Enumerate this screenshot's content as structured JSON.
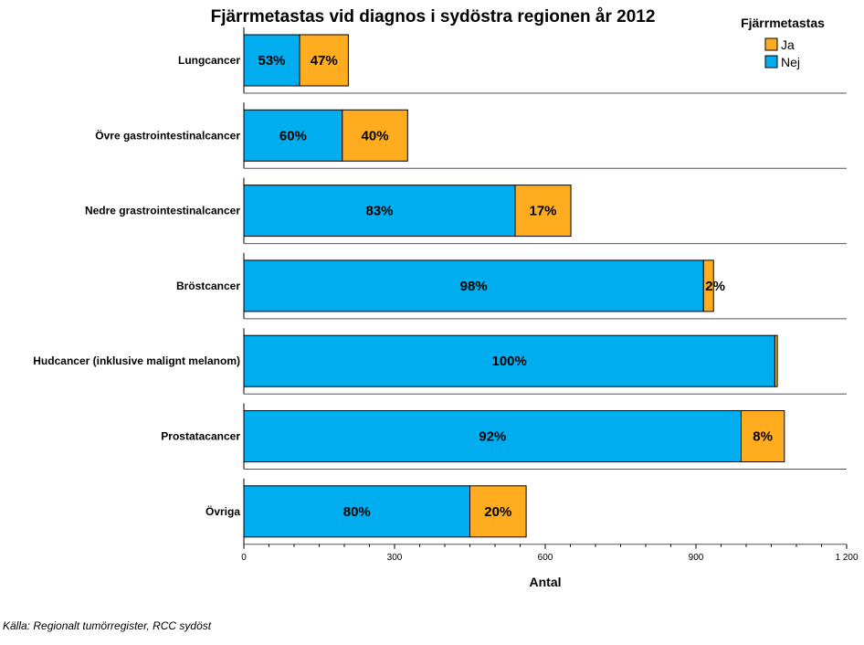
{
  "chart_data": {
    "type": "bar",
    "orientation": "horizontal",
    "stacked": true,
    "title": "Fjärrmetastas vid diagnos i sydöstra regionen år 2012",
    "xlabel": "Antal",
    "ylabel": "",
    "xlim": [
      0,
      1200
    ],
    "xticks": [
      0,
      300,
      600,
      900,
      1200
    ],
    "xtick_labels": [
      "0",
      "300",
      "600",
      "900",
      "1 200"
    ],
    "categories": [
      "Lungcancer",
      "Övre gastrointestinalcancer",
      "Nedre grastrointestinalcancer",
      "Bröstcancer",
      "Hudcancer (inklusive malignt melanom)",
      "Prostatacancer",
      "Övriga"
    ],
    "series": [
      {
        "name": "Nej",
        "color": "#00aeef",
        "values": [
          111,
          196,
          540,
          915,
          1057,
          990,
          450
        ],
        "labels": [
          "53%",
          "60%",
          "83%",
          "98%",
          "100%",
          "92%",
          "80%"
        ]
      },
      {
        "name": "Ja",
        "color": "#ffad1f",
        "values": [
          97,
          130,
          111,
          20,
          5,
          86,
          112
        ],
        "labels": [
          "47%",
          "40%",
          "17%",
          "2%",
          "",
          "8%",
          "20%"
        ]
      }
    ],
    "legend": {
      "title": "Fjärrmetastas",
      "position": "top-right",
      "items": [
        {
          "label": "Ja",
          "color": "#ffad1f"
        },
        {
          "label": "Nej",
          "color": "#00aeef"
        }
      ]
    },
    "grid": false
  },
  "source": "Källa: Regionalt tumörregister, RCC sydöst"
}
